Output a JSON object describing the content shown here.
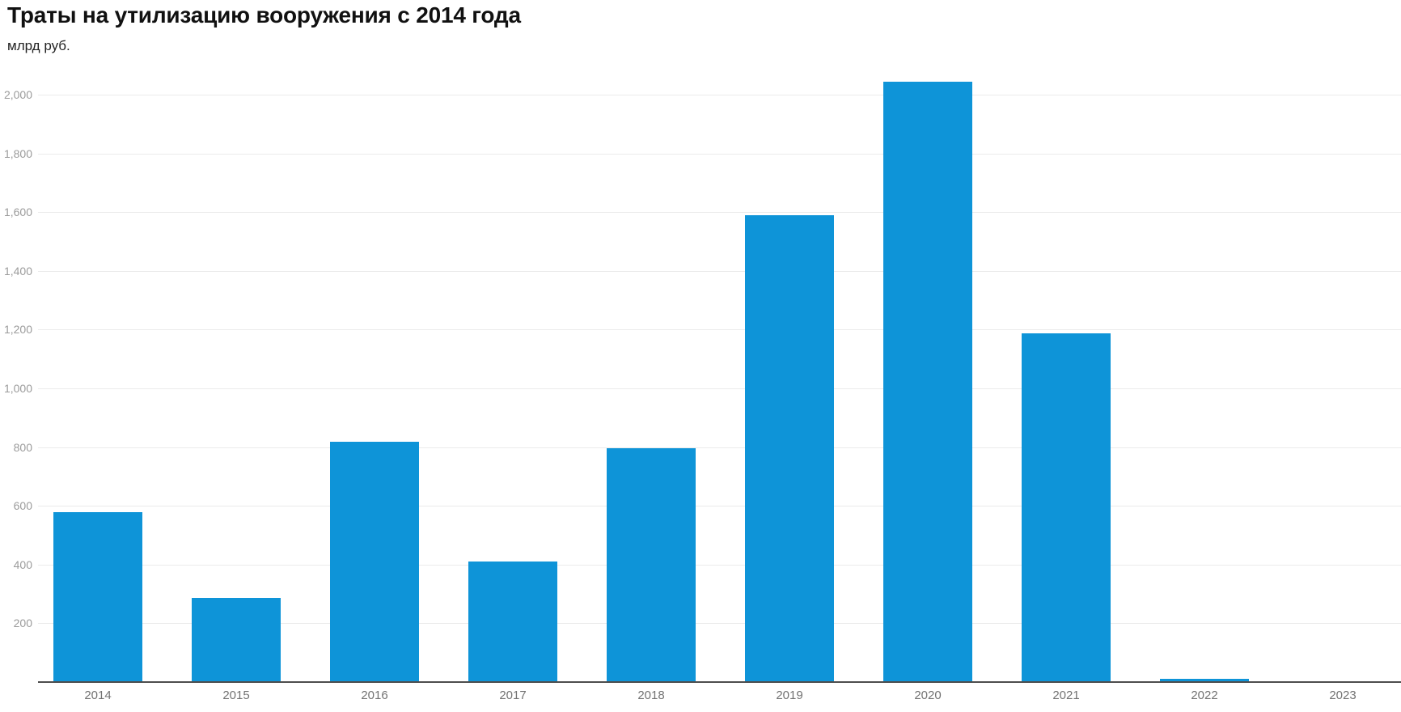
{
  "header": {
    "title": "Траты на утилизацию вооружения с 2014 года",
    "unit_label": "млрд руб."
  },
  "chart_data": {
    "type": "bar",
    "title": "Траты на утилизацию вооружения с 2014 года",
    "subtitle": "млрд руб.",
    "xlabel": "",
    "ylabel": "млрд руб.",
    "categories": [
      "2014",
      "2015",
      "2016",
      "2017",
      "2018",
      "2019",
      "2020",
      "2021",
      "2022",
      "2023"
    ],
    "values": [
      580,
      287,
      818,
      411,
      797,
      1590,
      2044,
      1188,
      10,
      0
    ],
    "ylim": [
      0,
      2100
    ],
    "ytick_values": [
      200,
      400,
      600,
      800,
      1000,
      1200,
      1400,
      1600,
      1800,
      2000
    ],
    "ytick_labels": [
      "200",
      "400",
      "600",
      "800",
      "1,000",
      "1,200",
      "1,400",
      "1,600",
      "1,800",
      "2,000"
    ],
    "grid": true,
    "legend": "none",
    "bar_color": "#0e94d8",
    "gridline_color": "#ebebeb",
    "axis_line_color": "#4d4d4d",
    "ytick_color": "#9b9b9b",
    "xtick_color": "#737373"
  }
}
